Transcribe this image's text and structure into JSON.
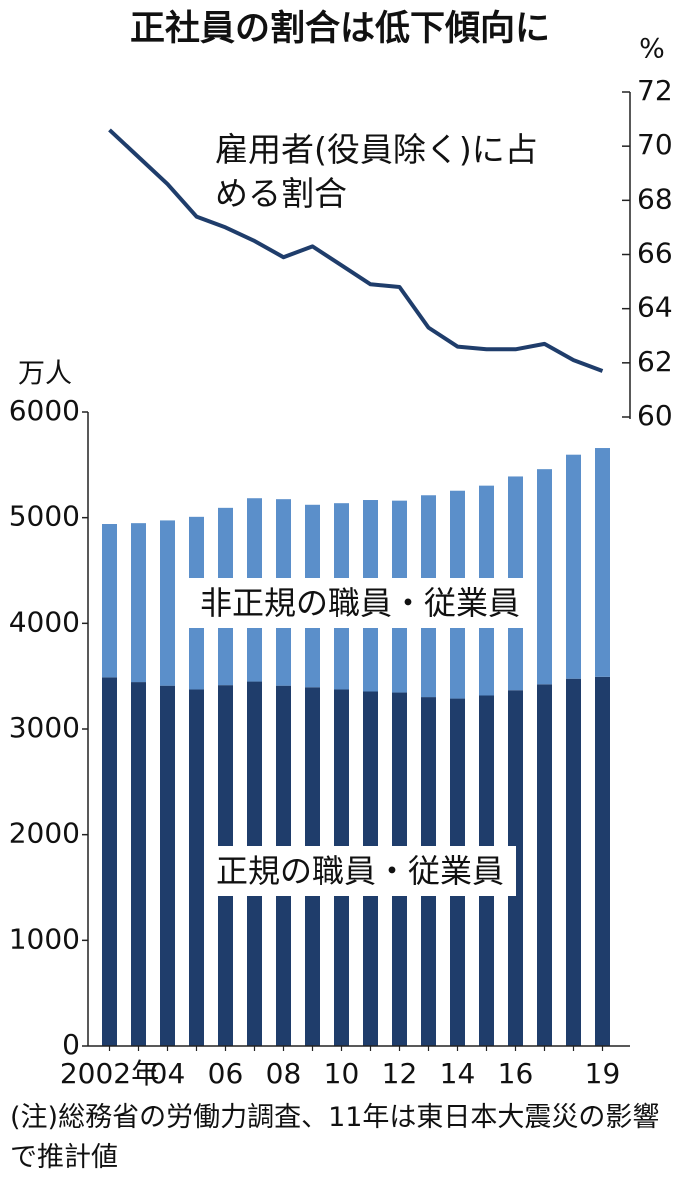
{
  "chart_data": {
    "type": "bar",
    "stacked": true,
    "title": "正社員の割合は低下傾向に",
    "categories": [
      "2002年",
      null,
      "04",
      null,
      "06",
      null,
      "08",
      null,
      "10",
      null,
      "12",
      null,
      "14",
      null,
      "16",
      null,
      null,
      "19"
    ],
    "series": [
      {
        "name": "正規の職員・従業員",
        "color": "#1f3d6b",
        "values": [
          3489,
          3444,
          3410,
          3374,
          3415,
          3449,
          3410,
          3395,
          3374,
          3355,
          3345,
          3302,
          3288,
          3317,
          3367,
          3423,
          3476,
          3494
        ]
      },
      {
        "name": "非正規の職員・従業員",
        "color": "#5b8fca",
        "values": [
          1451,
          1504,
          1564,
          1634,
          1678,
          1735,
          1765,
          1727,
          1763,
          1812,
          1816,
          1910,
          1967,
          1986,
          2023,
          2036,
          2120,
          2165
        ]
      },
      {
        "name": "雇用者(役員除く)に占める割合",
        "type": "line",
        "axis": "y2",
        "color": "#1f3d6b",
        "values": [
          70.6,
          69.6,
          68.6,
          67.4,
          67.0,
          66.5,
          65.9,
          66.3,
          65.6,
          64.9,
          64.8,
          63.3,
          62.6,
          62.5,
          62.5,
          62.7,
          62.1,
          61.7
        ]
      }
    ],
    "ylim": [
      0,
      6000
    ],
    "yticks": [
      0,
      1000,
      2000,
      3000,
      4000,
      5000,
      6000
    ],
    "y_unit": "万人",
    "y2lim": [
      60,
      72
    ],
    "y2ticks": [
      60,
      62,
      64,
      66,
      68,
      70,
      72
    ],
    "y2_unit": "%",
    "note": "(注)総務省の労働力調査、11年は東日本大震災の影響で推計値"
  }
}
